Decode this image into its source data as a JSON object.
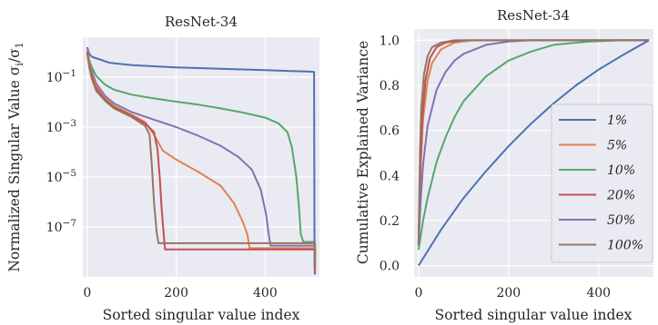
{
  "chart_data": [
    {
      "type": "line",
      "title": "ResNet-34",
      "xlabel": "Sorted singular value index",
      "ylabel_main": "Normalized Singular Value σ",
      "ylabel_sub1": "i",
      "ylabel_mid": "/σ",
      "ylabel_sub2": "1",
      "yscale": "log",
      "xlim": [
        -10,
        522
      ],
      "ylim_log10": [
        -9.0,
        0.6
      ],
      "grid": true,
      "xticks": [
        {
          "v": 0,
          "label": "0"
        },
        {
          "v": 200,
          "label": "200"
        },
        {
          "v": 400,
          "label": "400"
        }
      ],
      "yticks": [
        {
          "v": -1,
          "base": "10",
          "exp": "−1"
        },
        {
          "v": -3,
          "base": "10",
          "exp": "−3"
        },
        {
          "v": -5,
          "base": "10",
          "exp": "−5"
        },
        {
          "v": -7,
          "base": "10",
          "exp": "−7"
        }
      ],
      "series": [
        {
          "color": "#4c72b0",
          "points": [
            [
              0,
              0.2
            ],
            [
              4,
              -0.05
            ],
            [
              10,
              -0.18
            ],
            [
              50,
              -0.42
            ],
            [
              100,
              -0.52
            ],
            [
              200,
              -0.61
            ],
            [
              300,
              -0.66
            ],
            [
              400,
              -0.72
            ],
            [
              450,
              -0.75
            ],
            [
              500,
              -0.78
            ],
            [
              510,
              -0.79
            ],
            [
              511,
              -8.6
            ],
            [
              512,
              -8.9
            ]
          ]
        },
        {
          "color": "#55a868",
          "points": [
            [
              0,
              0.05
            ],
            [
              4,
              -0.3
            ],
            [
              10,
              -0.6
            ],
            [
              20,
              -0.95
            ],
            [
              40,
              -1.3
            ],
            [
              60,
              -1.5
            ],
            [
              100,
              -1.7
            ],
            [
              150,
              -1.85
            ],
            [
              200,
              -1.98
            ],
            [
              250,
              -2.1
            ],
            [
              300,
              -2.25
            ],
            [
              350,
              -2.42
            ],
            [
              400,
              -2.62
            ],
            [
              430,
              -2.85
            ],
            [
              450,
              -3.2
            ],
            [
              460,
              -3.8
            ],
            [
              470,
              -5.0
            ],
            [
              476,
              -6.2
            ],
            [
              480,
              -7.3
            ],
            [
              486,
              -7.6
            ],
            [
              512,
              -7.6
            ],
            [
              512,
              -8.5
            ]
          ]
        },
        {
          "color": "#8172b2",
          "points": [
            [
              0,
              0.1
            ],
            [
              4,
              -0.3
            ],
            [
              10,
              -0.75
            ],
            [
              20,
              -1.25
            ],
            [
              40,
              -1.75
            ],
            [
              60,
              -2.05
            ],
            [
              100,
              -2.4
            ],
            [
              150,
              -2.7
            ],
            [
              200,
              -3.0
            ],
            [
              250,
              -3.35
            ],
            [
              300,
              -3.75
            ],
            [
              340,
              -4.2
            ],
            [
              370,
              -4.7
            ],
            [
              390,
              -5.5
            ],
            [
              402,
              -6.5
            ],
            [
              408,
              -7.3
            ],
            [
              412,
              -7.75
            ],
            [
              512,
              -7.75
            ],
            [
              512,
              -8.6
            ]
          ]
        },
        {
          "color": "#dd8452",
          "points": [
            [
              0,
              0.1
            ],
            [
              4,
              -0.35
            ],
            [
              10,
              -0.85
            ],
            [
              20,
              -1.35
            ],
            [
              40,
              -1.85
            ],
            [
              60,
              -2.15
            ],
            [
              100,
              -2.5
            ],
            [
              130,
              -2.8
            ],
            [
              150,
              -3.3
            ],
            [
              170,
              -3.95
            ],
            [
              200,
              -4.3
            ],
            [
              250,
              -4.8
            ],
            [
              300,
              -5.35
            ],
            [
              330,
              -6.05
            ],
            [
              350,
              -6.8
            ],
            [
              360,
              -7.3
            ],
            [
              365,
              -7.85
            ],
            [
              512,
              -7.85
            ],
            [
              512,
              -8.8
            ]
          ]
        },
        {
          "color": "#c44e52",
          "points": [
            [
              0,
              0.0
            ],
            [
              4,
              -0.45
            ],
            [
              10,
              -0.95
            ],
            [
              20,
              -1.45
            ],
            [
              40,
              -1.9
            ],
            [
              60,
              -2.2
            ],
            [
              100,
              -2.55
            ],
            [
              130,
              -2.85
            ],
            [
              150,
              -3.2
            ],
            [
              158,
              -3.9
            ],
            [
              163,
              -5.0
            ],
            [
              167,
              -6.2
            ],
            [
              172,
              -7.3
            ],
            [
              175,
              -7.9
            ],
            [
              512,
              -7.9
            ],
            [
              512,
              -8.8
            ]
          ]
        },
        {
          "color": "#937860",
          "points": [
            [
              0,
              -0.05
            ],
            [
              4,
              -0.55
            ],
            [
              10,
              -1.05
            ],
            [
              20,
              -1.55
            ],
            [
              40,
              -1.95
            ],
            [
              60,
              -2.25
            ],
            [
              100,
              -2.6
            ],
            [
              130,
              -2.95
            ],
            [
              140,
              -3.3
            ],
            [
              145,
              -4.5
            ],
            [
              150,
              -6.0
            ],
            [
              156,
              -7.2
            ],
            [
              160,
              -7.65
            ],
            [
              512,
              -7.65
            ],
            [
              512,
              -8.6
            ]
          ]
        }
      ]
    },
    {
      "type": "line",
      "title": "ResNet-34",
      "xlabel": "Sorted singular value index",
      "ylabel": "Cumulative Explained Variance",
      "xlim": [
        -10,
        522
      ],
      "ylim": [
        -0.05,
        1.05
      ],
      "grid": true,
      "xticks": [
        {
          "v": 0,
          "label": "0"
        },
        {
          "v": 200,
          "label": "200"
        },
        {
          "v": 400,
          "label": "400"
        }
      ],
      "yticks": [
        {
          "v": 0.0,
          "label": "0.0"
        },
        {
          "v": 0.2,
          "label": "0.2"
        },
        {
          "v": 0.4,
          "label": "0.4"
        },
        {
          "v": 0.6,
          "label": "0.6"
        },
        {
          "v": 0.8,
          "label": "0.8"
        },
        {
          "v": 1.0,
          "label": "1.0"
        }
      ],
      "legend_position": "lower-right",
      "series": [
        {
          "name": "1%",
          "color": "#4c72b0",
          "points": [
            [
              0,
              0.0
            ],
            [
              50,
              0.16
            ],
            [
              100,
              0.3
            ],
            [
              150,
              0.42
            ],
            [
              200,
              0.53
            ],
            [
              250,
              0.63
            ],
            [
              300,
              0.72
            ],
            [
              350,
              0.8
            ],
            [
              400,
              0.87
            ],
            [
              450,
              0.93
            ],
            [
              512,
              1.0
            ]
          ]
        },
        {
          "name": "5%",
          "color": "#dd8452",
          "points": [
            [
              0,
              0.1
            ],
            [
              5,
              0.45
            ],
            [
              10,
              0.65
            ],
            [
              20,
              0.82
            ],
            [
              30,
              0.9
            ],
            [
              50,
              0.96
            ],
            [
              80,
              0.99
            ],
            [
              120,
              1.0
            ],
            [
              512,
              1.0
            ]
          ]
        },
        {
          "name": "10%",
          "color": "#55a868",
          "points": [
            [
              0,
              0.07
            ],
            [
              10,
              0.2
            ],
            [
              20,
              0.3
            ],
            [
              40,
              0.46
            ],
            [
              60,
              0.57
            ],
            [
              80,
              0.66
            ],
            [
              100,
              0.73
            ],
            [
              150,
              0.84
            ],
            [
              200,
              0.91
            ],
            [
              250,
              0.95
            ],
            [
              300,
              0.98
            ],
            [
              380,
              0.995
            ],
            [
              450,
              1.0
            ],
            [
              512,
              1.0
            ]
          ]
        },
        {
          "name": "20%",
          "color": "#c44e52",
          "points": [
            [
              0,
              0.1
            ],
            [
              4,
              0.45
            ],
            [
              8,
              0.65
            ],
            [
              15,
              0.82
            ],
            [
              25,
              0.92
            ],
            [
              40,
              0.97
            ],
            [
              60,
              0.99
            ],
            [
              100,
              1.0
            ],
            [
              512,
              1.0
            ]
          ]
        },
        {
          "name": "50%",
          "color": "#8172b2",
          "points": [
            [
              0,
              0.09
            ],
            [
              5,
              0.3
            ],
            [
              10,
              0.45
            ],
            [
              20,
              0.62
            ],
            [
              40,
              0.78
            ],
            [
              60,
              0.86
            ],
            [
              80,
              0.91
            ],
            [
              100,
              0.94
            ],
            [
              150,
              0.98
            ],
            [
              200,
              0.995
            ],
            [
              250,
              1.0
            ],
            [
              512,
              1.0
            ]
          ]
        },
        {
          "name": "100%",
          "color": "#937860",
          "points": [
            [
              0,
              0.1
            ],
            [
              3,
              0.5
            ],
            [
              6,
              0.7
            ],
            [
              12,
              0.85
            ],
            [
              20,
              0.93
            ],
            [
              30,
              0.97
            ],
            [
              50,
              0.99
            ],
            [
              80,
              1.0
            ],
            [
              512,
              1.0
            ]
          ]
        }
      ]
    }
  ]
}
